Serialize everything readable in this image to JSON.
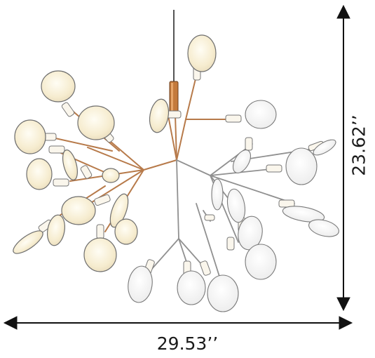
{
  "dimensions": {
    "width_label": "29.53’’",
    "height_label": "23.62’’"
  },
  "colors": {
    "stem_copper": "#b77a4a",
    "stem_silver": "#8a8a8a",
    "shade_fill": "#f7f0dd",
    "shade_glow": "#fdf8ea",
    "shade_stroke": "#777777",
    "arrow": "#111111",
    "cord": "#555555"
  }
}
